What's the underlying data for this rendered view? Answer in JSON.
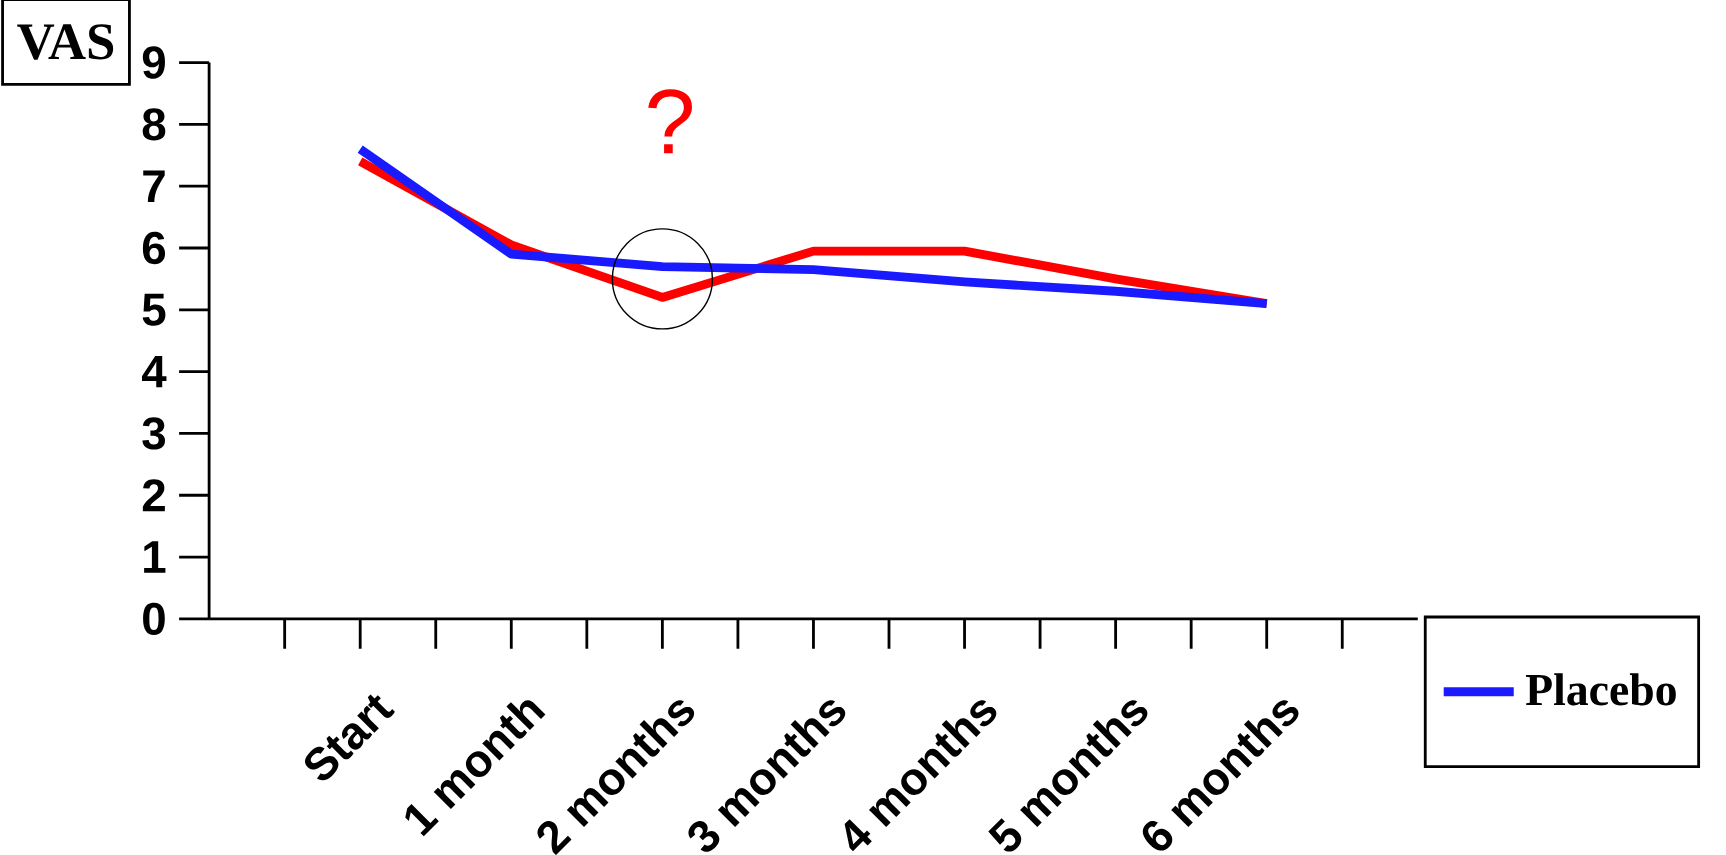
{
  "chart_data": {
    "type": "line",
    "ylabel": "VAS",
    "categories": [
      "Start",
      "1 month",
      "2 months",
      "3 months",
      "4 months",
      "5 months",
      "6 months"
    ],
    "series": [
      {
        "color": "#ff0000",
        "values": [
          7.4,
          6.05,
          5.2,
          5.95,
          5.95,
          5.5,
          5.1
        ]
      },
      {
        "name": "Placebo",
        "color": "#1a1aff",
        "values": [
          7.6,
          5.9,
          5.7,
          5.65,
          5.45,
          5.3,
          5.1
        ]
      }
    ],
    "ylim": [
      0,
      9
    ],
    "yticks": [
      0,
      1,
      2,
      3,
      4,
      5,
      6,
      7,
      8,
      9
    ],
    "legend": "right",
    "annotations": [
      "?"
    ]
  }
}
